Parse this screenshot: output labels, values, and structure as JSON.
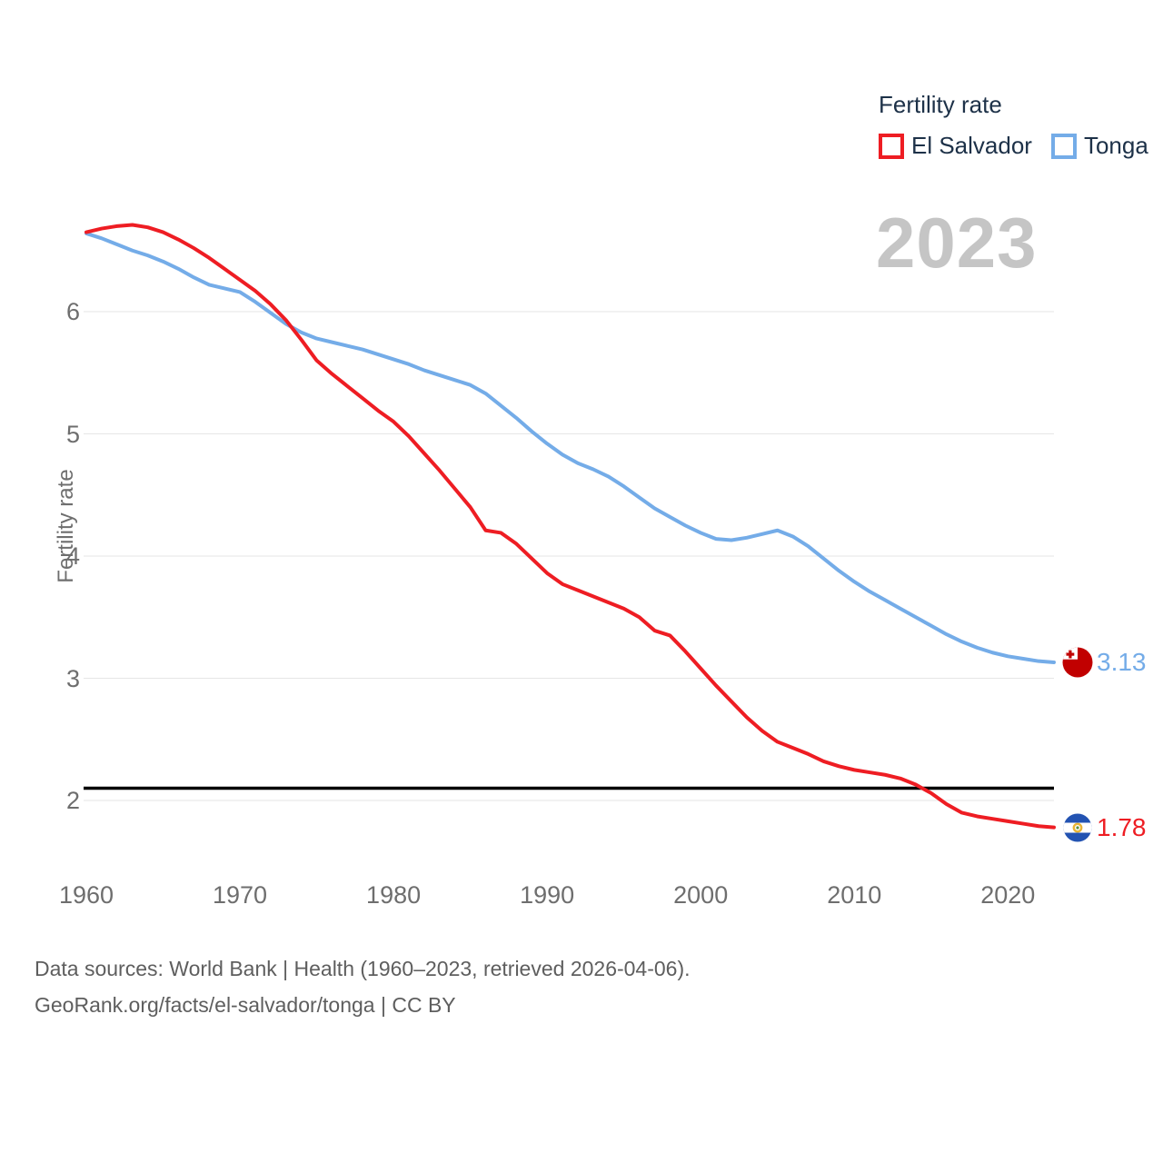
{
  "legend": {
    "title": "Fertility rate",
    "items": [
      {
        "label": "El Salvador",
        "color": "#ee1d23"
      },
      {
        "label": "Tonga",
        "color": "#74ace8"
      }
    ]
  },
  "year_badge": "2023",
  "chart_data": {
    "type": "line",
    "title": "Fertility rate",
    "ylabel": "Fertility rate",
    "xlabel": "",
    "x_range": [
      1960,
      2023
    ],
    "ylim": [
      1.7,
      6.8
    ],
    "y_ticks": [
      2,
      3,
      4,
      5,
      6
    ],
    "x_ticks": [
      1960,
      1970,
      1980,
      1990,
      2000,
      2010,
      2020
    ],
    "grid": true,
    "legend_position": "top-right",
    "years": [
      1960,
      1961,
      1962,
      1963,
      1964,
      1965,
      1966,
      1967,
      1968,
      1969,
      1970,
      1971,
      1972,
      1973,
      1974,
      1975,
      1976,
      1977,
      1978,
      1979,
      1980,
      1981,
      1982,
      1983,
      1984,
      1985,
      1986,
      1987,
      1988,
      1989,
      1990,
      1991,
      1992,
      1993,
      1994,
      1995,
      1996,
      1997,
      1998,
      1999,
      2000,
      2001,
      2002,
      2003,
      2004,
      2005,
      2006,
      2007,
      2008,
      2009,
      2010,
      2011,
      2012,
      2013,
      2014,
      2015,
      2016,
      2017,
      2018,
      2019,
      2020,
      2021,
      2022,
      2023
    ],
    "series": [
      {
        "name": "El Salvador",
        "key": "el_salvador",
        "color": "#ee1d23",
        "end_value": 1.78,
        "end_label": "1.78",
        "values": [
          6.65,
          6.68,
          6.7,
          6.71,
          6.69,
          6.65,
          6.59,
          6.52,
          6.44,
          6.35,
          6.26,
          6.17,
          6.06,
          5.93,
          5.77,
          5.6,
          5.49,
          5.39,
          5.29,
          5.19,
          5.1,
          4.98,
          4.84,
          4.7,
          4.55,
          4.4,
          4.21,
          4.19,
          4.1,
          3.98,
          3.86,
          3.77,
          3.72,
          3.67,
          3.62,
          3.57,
          3.5,
          3.39,
          3.35,
          3.22,
          3.08,
          2.94,
          2.81,
          2.68,
          2.57,
          2.48,
          2.43,
          2.38,
          2.32,
          2.28,
          2.25,
          2.23,
          2.21,
          2.18,
          2.13,
          2.06,
          1.97,
          1.9,
          1.87,
          1.85,
          1.83,
          1.81,
          1.79,
          1.78
        ]
      },
      {
        "name": "Tonga",
        "key": "tonga",
        "color": "#74ace8",
        "end_value": 3.13,
        "end_label": "3.13",
        "values": [
          6.64,
          6.6,
          6.55,
          6.5,
          6.46,
          6.41,
          6.35,
          6.28,
          6.22,
          6.19,
          6.16,
          6.08,
          5.99,
          5.9,
          5.83,
          5.78,
          5.75,
          5.72,
          5.69,
          5.65,
          5.61,
          5.57,
          5.52,
          5.48,
          5.44,
          5.4,
          5.33,
          5.23,
          5.13,
          5.02,
          4.92,
          4.83,
          4.76,
          4.71,
          4.65,
          4.57,
          4.48,
          4.39,
          4.32,
          4.25,
          4.19,
          4.14,
          4.13,
          4.15,
          4.18,
          4.21,
          4.16,
          4.08,
          3.98,
          3.88,
          3.79,
          3.71,
          3.64,
          3.57,
          3.5,
          3.43,
          3.36,
          3.3,
          3.25,
          3.21,
          3.18,
          3.16,
          3.14,
          3.13
        ]
      }
    ],
    "reference_line": {
      "value": 2.1,
      "color": "#000000"
    }
  },
  "footer": {
    "sources": "Data sources: World Bank | Health (1960–2023, retrieved 2026-04-06).",
    "attribution": "GeoRank.org/facts/el-salvador/tonga | CC BY"
  }
}
